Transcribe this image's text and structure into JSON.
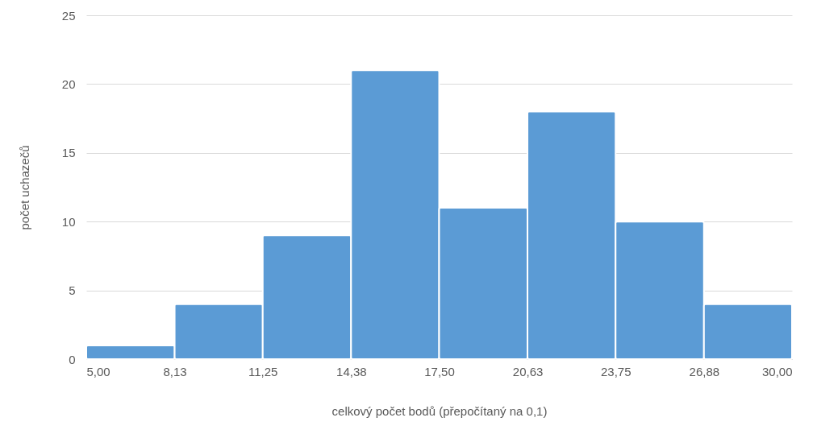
{
  "chart_data": {
    "type": "histogram",
    "xlabel": "celkový počet bodů (přepočítaný na 0,1)",
    "ylabel": "počet uchazečů",
    "bins": [
      5,
      8.13,
      11.25,
      14.38,
      17.5,
      20.63,
      23.75,
      26.88,
      30
    ],
    "values": [
      1,
      4,
      9,
      21,
      11,
      18,
      10,
      4
    ],
    "color": "#5b9bd5",
    "xlim": [
      5,
      30
    ],
    "xticks": [
      {
        "value": 5,
        "label": "5,00"
      },
      {
        "value": 8.13,
        "label": "8,13"
      },
      {
        "value": 11.25,
        "label": "11,25"
      },
      {
        "value": 14.38,
        "label": "14,38"
      },
      {
        "value": 17.5,
        "label": "17,50"
      },
      {
        "value": 20.63,
        "label": "20,63"
      },
      {
        "value": 23.75,
        "label": "23,75"
      },
      {
        "value": 26.88,
        "label": "26,88"
      },
      {
        "value": 30,
        "label": "30,00"
      }
    ],
    "ylim": [
      0,
      25
    ],
    "yticks": [
      0,
      5,
      10,
      15,
      20,
      25
    ],
    "grid": "y"
  }
}
